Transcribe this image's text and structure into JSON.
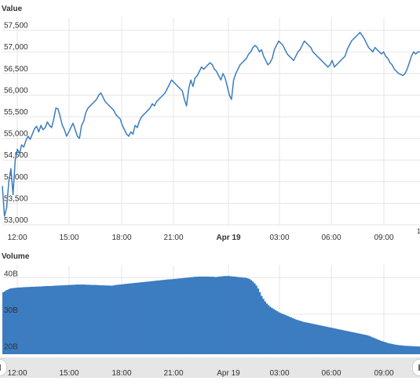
{
  "colors": {
    "line": "#3b7dbf",
    "bar": "#3c7cc0",
    "grid": "#e6e6e6",
    "axis_text": "#333333"
  },
  "chart_data": [
    {
      "type": "line",
      "title": "Value",
      "ylim": [
        53000,
        57800
      ],
      "y_ticks": [
        "53,000",
        "53,500",
        "54,000",
        "54,500",
        "55,000",
        "55,500",
        "56,000",
        "56,500",
        "57,000",
        "57,500"
      ],
      "x_ticks": [
        "12:00",
        "15:00",
        "18:00",
        "21:00",
        "Apr 19",
        "03:00",
        "06:00",
        "09:00"
      ],
      "x_tick_cut": "1",
      "grid": true,
      "series": [
        {
          "values": [
            53900,
            53200,
            53400,
            54000,
            54300,
            53700,
            54500,
            54750,
            54650,
            54850,
            54800,
            54950,
            55050,
            54980,
            55100,
            55220,
            55280,
            55150,
            55300,
            55200,
            55250,
            55380,
            55300,
            55250,
            55450,
            55700,
            55680,
            55500,
            55300,
            55200,
            55050,
            55150,
            55250,
            55350,
            55200,
            55050,
            55000,
            55300,
            55400,
            55600,
            55700,
            55750,
            55800,
            55850,
            55900,
            56000,
            56050,
            55950,
            55850,
            55800,
            55750,
            55700,
            55650,
            55550,
            55500,
            55450,
            55300,
            55200,
            55100,
            55050,
            55150,
            55100,
            55300,
            55250,
            55400,
            55500,
            55550,
            55600,
            55650,
            55700,
            55800,
            55750,
            55850,
            55900,
            55950,
            56000,
            56050,
            56150,
            56250,
            56350,
            56300,
            56250,
            56200,
            56150,
            56100,
            55900,
            55750,
            56150,
            56350,
            56200,
            56400,
            56450,
            56550,
            56650,
            56600,
            56650,
            56700,
            56750,
            56700,
            56600,
            56550,
            56450,
            56350,
            56500,
            56400,
            56200,
            56000,
            55900,
            56350,
            56500,
            56600,
            56700,
            56750,
            56800,
            56850,
            56950,
            57000,
            57100,
            57150,
            57100,
            57000,
            57050,
            56900,
            56800,
            56700,
            56750,
            56850,
            57050,
            57150,
            57250,
            57200,
            57150,
            57050,
            56950,
            56900,
            56850,
            56800,
            56900,
            57000,
            57050,
            57150,
            57250,
            57200,
            57150,
            57100,
            57000,
            56950,
            56900,
            56850,
            56800,
            56750,
            56700,
            56650,
            56700,
            56800,
            56650,
            56700,
            56750,
            56800,
            56850,
            56900,
            57050,
            57150,
            57250,
            57300,
            57350,
            57400,
            57450,
            57380,
            57300,
            57200,
            57100,
            57050,
            57000,
            57100,
            57050,
            57000,
            56950,
            57000,
            56900,
            56850,
            56750,
            56700,
            56600,
            56550,
            56500,
            56480,
            56450,
            56500,
            56600,
            56750,
            56900,
            57000,
            56950,
            57000,
            57000
          ]
        }
      ]
    },
    {
      "type": "bar",
      "title": "Volume",
      "ylim": [
        19000000000,
        43500000000
      ],
      "y_ticks": [
        "20B",
        "30B",
        "40B"
      ],
      "x_ticks": [
        "12:00",
        "15:00",
        "18:00",
        "21:00",
        "Apr 19",
        "03:00",
        "06:00",
        "09:00"
      ],
      "grid": true,
      "series": [
        {
          "values": [
            36000000000,
            36300000000,
            36600000000,
            36800000000,
            37000000000,
            37100000000,
            37150000000,
            37200000000,
            37250000000,
            37300000000,
            37300000000,
            37350000000,
            37400000000,
            37400000000,
            37450000000,
            37450000000,
            37500000000,
            37500000000,
            37500000000,
            37550000000,
            37550000000,
            37600000000,
            37600000000,
            37650000000,
            37650000000,
            37700000000,
            37700000000,
            37700000000,
            37750000000,
            37750000000,
            37800000000,
            37800000000,
            37850000000,
            37850000000,
            37900000000,
            37900000000,
            37950000000,
            37950000000,
            38000000000,
            38000000000,
            38050000000,
            38050000000,
            38100000000,
            38100000000,
            38100000000,
            38100000000,
            38100000000,
            38100000000,
            38050000000,
            38050000000,
            38050000000,
            38000000000,
            38000000000,
            38000000000,
            37950000000,
            37950000000,
            37900000000,
            37900000000,
            37900000000,
            37850000000,
            37850000000,
            37850000000,
            37800000000,
            37800000000,
            37900000000,
            38000000000,
            38050000000,
            38100000000,
            38150000000,
            38200000000,
            38250000000,
            38300000000,
            38350000000,
            38400000000,
            38450000000,
            38500000000,
            38550000000,
            38600000000,
            38650000000,
            38700000000,
            38750000000,
            38800000000,
            38850000000,
            38900000000,
            38950000000,
            39000000000,
            39050000000,
            39100000000,
            39150000000,
            39200000000,
            39250000000,
            39300000000,
            39350000000,
            39400000000,
            39450000000,
            39500000000,
            39550000000,
            39550000000,
            39600000000,
            39650000000,
            39700000000,
            39750000000,
            39800000000,
            39850000000,
            39900000000,
            39950000000,
            40000000000,
            40050000000,
            40100000000,
            40150000000,
            40200000000,
            40250000000,
            40250000000,
            40300000000,
            40300000000,
            40300000000,
            40300000000,
            40300000000,
            40300000000,
            40250000000,
            40250000000,
            40250000000,
            40200000000,
            40200000000,
            40250000000,
            40300000000,
            40350000000,
            40400000000,
            40450000000,
            40450000000,
            40450000000,
            40400000000,
            40350000000,
            40300000000,
            40250000000,
            40200000000,
            40150000000,
            40100000000,
            40050000000,
            40000000000,
            39950000000,
            39800000000,
            39600000000,
            39300000000,
            38900000000,
            38400000000,
            37800000000,
            37000000000,
            36000000000,
            35000000000,
            34200000000,
            33500000000,
            32900000000,
            32400000000,
            32000000000,
            31700000000,
            31400000000,
            31100000000,
            30800000000,
            30500000000,
            30300000000,
            30100000000,
            29900000000,
            29700000000,
            29500000000,
            29300000000,
            29100000000,
            28900000000,
            28700000000,
            28500000000,
            28350000000,
            28200000000,
            28050000000,
            27900000000,
            27800000000,
            27700000000,
            27600000000,
            27500000000,
            27400000000,
            27300000000,
            27200000000,
            27100000000,
            27000000000,
            26900000000,
            26800000000,
            26700000000,
            26600000000,
            26500000000,
            26400000000,
            26300000000,
            26200000000,
            26100000000,
            26000000000,
            25900000000,
            25800000000,
            25700000000,
            25600000000,
            25500000000,
            25400000000,
            25300000000,
            25200000000,
            25100000000,
            25000000000,
            24900000000,
            24800000000,
            24700000000,
            24600000000,
            24500000000,
            24400000000,
            24300000000,
            24200000000,
            24050000000,
            23850000000,
            23650000000,
            23450000000,
            23250000000,
            23050000000,
            22850000000,
            22650000000,
            22500000000,
            22350000000,
            22200000000,
            22050000000,
            21950000000,
            21850000000,
            21750000000,
            21650000000,
            21550000000,
            21500000000,
            21450000000,
            21400000000,
            21350000000,
            21300000000,
            21300000000,
            21250000000,
            21250000000,
            21200000000,
            21200000000,
            21150000000,
            21150000000,
            21100000000
          ]
        }
      ]
    }
  ]
}
